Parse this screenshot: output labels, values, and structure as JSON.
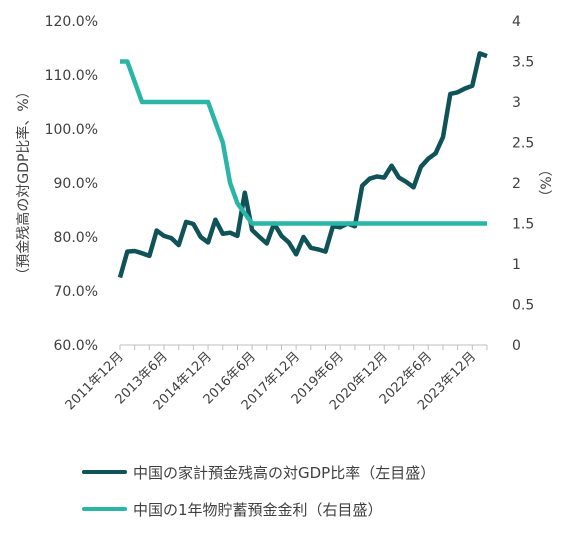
{
  "chart_data": {
    "type": "line",
    "ylabel_left": "（預金残高の対GDP比率、%）",
    "ylabel_right": "（%）",
    "ylim_left": [
      60,
      120
    ],
    "ylim_right": [
      0,
      4
    ],
    "yticks_left": [
      "60.0%",
      "70.0%",
      "80.0%",
      "90.0%",
      "100.0%",
      "110.0%",
      "120.0%"
    ],
    "yticks_right": [
      "0",
      "0.5",
      "1",
      "1.5",
      "2",
      "2.5",
      "3",
      "3.5",
      "4"
    ],
    "xticks": [
      "2011年12月",
      "2013年6月",
      "2014年12月",
      "2016年6月",
      "2017年12月",
      "2019年6月",
      "2020年12月",
      "2022年6月",
      "2023年12月"
    ],
    "grid": false,
    "legend_position": "bottom",
    "series": [
      {
        "name": "中国の家計預金残高の対GDP比率（左目盛）",
        "axis": "left",
        "color": "#0f5257",
        "x": [
          "2011-12",
          "2012-03",
          "2012-06",
          "2012-09",
          "2012-12",
          "2013-03",
          "2013-06",
          "2013-09",
          "2013-12",
          "2014-03",
          "2014-06",
          "2014-09",
          "2014-12",
          "2015-03",
          "2015-06",
          "2015-09",
          "2015-12",
          "2016-03",
          "2016-06",
          "2016-09",
          "2016-12",
          "2017-03",
          "2017-06",
          "2017-09",
          "2017-12",
          "2018-03",
          "2018-06",
          "2018-09",
          "2018-12",
          "2019-03",
          "2019-06",
          "2019-09",
          "2019-12",
          "2020-03",
          "2020-06",
          "2020-09",
          "2020-12",
          "2021-03",
          "2021-06",
          "2021-09",
          "2021-12",
          "2022-03",
          "2022-06",
          "2022-09",
          "2022-12",
          "2023-03",
          "2023-06",
          "2023-09",
          "2023-12",
          "2024-03",
          "2024-06"
        ],
        "values": [
          72.5,
          77.3,
          77.4,
          77.0,
          76.5,
          81.2,
          80.2,
          79.8,
          78.5,
          82.8,
          82.4,
          80.0,
          79.0,
          83.2,
          80.6,
          80.8,
          80.2,
          88.2,
          81.3,
          80.0,
          78.8,
          82.5,
          80.2,
          79.0,
          76.8,
          80.0,
          78.0,
          77.7,
          77.3,
          82.0,
          81.8,
          82.5,
          82.0,
          89.5,
          90.8,
          91.2,
          91.0,
          93.2,
          91.0,
          90.2,
          89.2,
          93.0,
          94.5,
          95.5,
          98.5,
          106.5,
          106.8,
          107.5,
          108.0,
          114.0,
          113.5
        ]
      },
      {
        "name": "中国の1年物貯蓄預金金利（右目盛）",
        "axis": "right",
        "color": "#2ab5a7",
        "x": [
          "2011-12",
          "2012-03",
          "2012-06",
          "2012-09",
          "2012-12",
          "2013-06",
          "2013-12",
          "2014-06",
          "2014-09",
          "2014-12",
          "2015-03",
          "2015-06",
          "2015-09",
          "2015-12",
          "2016-06",
          "2016-12",
          "2017-12",
          "2018-12",
          "2019-12",
          "2020-12",
          "2021-12",
          "2022-12",
          "2023-12",
          "2024-06"
        ],
        "values": [
          3.5,
          3.5,
          3.25,
          3.0,
          3.0,
          3.0,
          3.0,
          3.0,
          3.0,
          3.0,
          2.75,
          2.5,
          2.0,
          1.75,
          1.5,
          1.5,
          1.5,
          1.5,
          1.5,
          1.5,
          1.5,
          1.5,
          1.5,
          1.5
        ]
      }
    ]
  }
}
